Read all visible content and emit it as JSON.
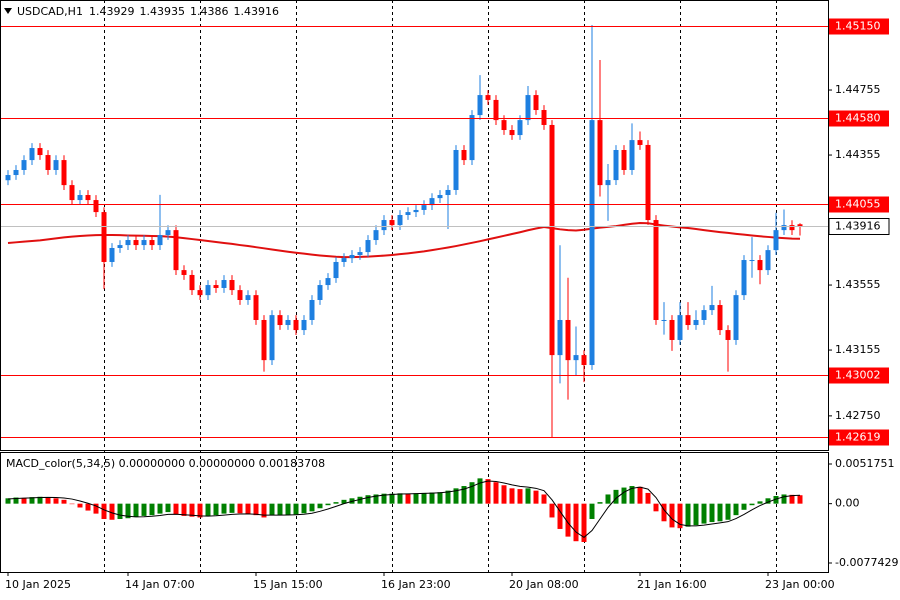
{
  "chart_data": [
    {
      "type": "candlestick",
      "title": "USDCAD,H1",
      "categories": [
        "10 Jan 2025",
        null,
        null,
        null,
        null,
        null,
        null,
        null,
        null,
        null,
        null,
        null,
        null,
        null,
        null,
        "14 Jan 07:00",
        null,
        null,
        null,
        null,
        null,
        null,
        null,
        null,
        null,
        null,
        null,
        null,
        null,
        null,
        null,
        "15 Jan 15:00",
        null,
        null,
        null,
        null,
        null,
        null,
        null,
        null,
        null,
        null,
        null,
        null,
        null,
        null,
        null,
        "16 Jan 23:00",
        null,
        null,
        null,
        null,
        null,
        null,
        null,
        null,
        null,
        null,
        null,
        null,
        null,
        null,
        null,
        "20 Jan 08:00",
        null,
        null,
        null,
        null,
        null,
        null,
        null,
        null,
        null,
        null,
        null,
        null,
        null,
        null,
        null,
        "21 Jan 16:00",
        null,
        null,
        null,
        null,
        null,
        null,
        null,
        null,
        null,
        null,
        null,
        null,
        null,
        null,
        null,
        "23 Jan 00:00",
        null,
        null,
        null,
        null
      ],
      "open": [
        1.442,
        1.44232,
        1.44263,
        1.44324,
        1.44398,
        1.44355,
        1.44263,
        1.44324,
        1.4417,
        1.44078,
        1.44109,
        1.44078,
        1.44004,
        1.43697,
        1.43783,
        1.43801,
        1.43832,
        1.43801,
        1.43832,
        1.43801,
        1.43863,
        1.43893,
        1.43647,
        1.43617,
        1.43524,
        1.43493,
        1.43555,
        1.43537,
        1.43586,
        1.43524,
        1.43463,
        1.43493,
        1.4334,
        1.43093,
        1.4337,
        1.43309,
        1.4334,
        1.43278,
        1.4334,
        1.43463,
        1.43555,
        1.43598,
        1.43697,
        1.43721,
        1.4374,
        1.43758,
        1.43832,
        1.43893,
        1.43955,
        1.43924,
        1.43986,
        1.44004,
        1.44017,
        1.44047,
        1.4409,
        1.44109,
        1.4414,
        1.44386,
        1.44324,
        1.44601,
        1.44724,
        1.44694,
        1.4457,
        1.44509,
        1.44478,
        1.4457,
        1.44724,
        1.44632,
        1.4454,
        1.43124,
        1.4334,
        1.43093,
        1.43124,
        1.43063,
        1.4457,
        1.4417,
        1.44201,
        1.44386,
        1.44263,
        1.44447,
        1.44417,
        1.43955,
        1.4334,
        1.4334,
        1.43217,
        1.4337,
        1.43309,
        1.4334,
        1.43401,
        1.43432,
        1.43278,
        1.43217,
        1.43493,
        1.43709,
        1.43709,
        1.43647,
        1.4377,
        1.43893,
        1.43924,
        1.43929
      ],
      "high": [
        1.44262,
        1.44293,
        1.44354,
        1.44428,
        1.44428,
        1.44385,
        1.44354,
        1.44354,
        1.442,
        1.44139,
        1.44139,
        1.44108,
        1.44034,
        1.43813,
        1.43831,
        1.43862,
        1.43862,
        1.43862,
        1.43862,
        1.4411,
        1.43923,
        1.43923,
        1.43677,
        1.43647,
        1.43554,
        1.43585,
        1.43585,
        1.43616,
        1.43616,
        1.43554,
        1.43523,
        1.43523,
        1.4337,
        1.434,
        1.434,
        1.4337,
        1.4337,
        1.4337,
        1.43493,
        1.43585,
        1.43628,
        1.43727,
        1.43751,
        1.4377,
        1.43788,
        1.43862,
        1.43923,
        1.43985,
        1.43985,
        1.44016,
        1.44034,
        1.44047,
        1.44077,
        1.4412,
        1.44139,
        1.4417,
        1.44416,
        1.44416,
        1.44631,
        1.44847,
        1.44754,
        1.44724,
        1.446,
        1.44539,
        1.446,
        1.4478,
        1.44754,
        1.44662,
        1.4457,
        1.438,
        1.436,
        1.433,
        1.43154,
        1.45155,
        1.4494,
        1.443,
        1.44416,
        1.44416,
        1.4455,
        1.445,
        1.44447,
        1.43985,
        1.4345,
        1.4337,
        1.4345,
        1.4345,
        1.434,
        1.43431,
        1.4355,
        1.43462,
        1.43308,
        1.43523,
        1.43739,
        1.4385,
        1.43739,
        1.438,
        1.44,
        1.4402,
        1.43954,
        1.43935
      ],
      "low": [
        1.4417,
        1.44202,
        1.44233,
        1.44294,
        1.44325,
        1.44233,
        1.44233,
        1.4414,
        1.44048,
        1.44048,
        1.44048,
        1.43974,
        1.4353,
        1.43667,
        1.43753,
        1.43771,
        1.43771,
        1.43771,
        1.43771,
        1.43771,
        1.43833,
        1.43617,
        1.43587,
        1.43494,
        1.43463,
        1.43463,
        1.43507,
        1.43507,
        1.43494,
        1.43433,
        1.43433,
        1.4331,
        1.43022,
        1.43063,
        1.43279,
        1.43279,
        1.43248,
        1.43248,
        1.4331,
        1.43433,
        1.43525,
        1.43568,
        1.43667,
        1.43691,
        1.4371,
        1.43728,
        1.43802,
        1.43863,
        1.43894,
        1.43894,
        1.43956,
        1.43974,
        1.43987,
        1.44017,
        1.4406,
        1.439,
        1.4411,
        1.44294,
        1.44294,
        1.44571,
        1.44664,
        1.4454,
        1.44479,
        1.44448,
        1.44448,
        1.4454,
        1.44602,
        1.4451,
        1.4262,
        1.4295,
        1.4285,
        1.43,
        1.42958,
        1.43033,
        1.441,
        1.4395,
        1.44171,
        1.44233,
        1.44233,
        1.44387,
        1.43925,
        1.4331,
        1.4325,
        1.4315,
        1.43187,
        1.43279,
        1.43279,
        1.4331,
        1.43371,
        1.43248,
        1.43022,
        1.43187,
        1.43463,
        1.436,
        1.4356,
        1.43617,
        1.4374,
        1.43863,
        1.43863,
        1.4386
      ],
      "close": [
        1.44232,
        1.44263,
        1.44324,
        1.44398,
        1.44355,
        1.44263,
        1.44324,
        1.4417,
        1.44078,
        1.44109,
        1.44078,
        1.44004,
        1.43697,
        1.43783,
        1.43801,
        1.43832,
        1.43801,
        1.43832,
        1.43801,
        1.43863,
        1.43893,
        1.43647,
        1.43617,
        1.43524,
        1.43493,
        1.43555,
        1.43537,
        1.43586,
        1.43524,
        1.43463,
        1.43493,
        1.4334,
        1.43093,
        1.4337,
        1.43309,
        1.4334,
        1.43278,
        1.4334,
        1.43463,
        1.43555,
        1.43598,
        1.43697,
        1.43721,
        1.4374,
        1.43758,
        1.43832,
        1.43893,
        1.43955,
        1.43924,
        1.43986,
        1.44004,
        1.44017,
        1.44047,
        1.4409,
        1.44109,
        1.4414,
        1.44386,
        1.44324,
        1.44601,
        1.44724,
        1.44694,
        1.4457,
        1.44509,
        1.44478,
        1.4457,
        1.44724,
        1.44632,
        1.4454,
        1.43124,
        1.4334,
        1.43093,
        1.43124,
        1.43063,
        1.4457,
        1.4417,
        1.44201,
        1.44386,
        1.44263,
        1.44447,
        1.44417,
        1.43955,
        1.4334,
        1.4334,
        1.43217,
        1.4337,
        1.43309,
        1.4334,
        1.43401,
        1.43432,
        1.43278,
        1.43217,
        1.43493,
        1.43709,
        1.43709,
        1.43647,
        1.4377,
        1.43893,
        1.43924,
        1.43893,
        1.43916
      ],
      "up_color": "#1e7fe0",
      "down_color": "#ff0000",
      "ma": {
        "color": "#e01010",
        "values": [
          1.43814,
          1.43818,
          1.43822,
          1.43826,
          1.4383,
          1.43836,
          1.43842,
          1.43848,
          1.43853,
          1.43857,
          1.4386,
          1.43862,
          1.43863,
          1.43863,
          1.43862,
          1.4386,
          1.43859,
          1.43858,
          1.43857,
          1.43856,
          1.43853,
          1.43849,
          1.43844,
          1.43838,
          1.43832,
          1.43826,
          1.4382,
          1.43814,
          1.43808,
          1.43801,
          1.43795,
          1.43788,
          1.43781,
          1.43774,
          1.43767,
          1.4376,
          1.43754,
          1.43748,
          1.43742,
          1.43737,
          1.43733,
          1.43729,
          1.43727,
          1.43727,
          1.43728,
          1.4373,
          1.43733,
          1.43736,
          1.4374,
          1.43745,
          1.4375,
          1.43756,
          1.43762,
          1.4377,
          1.43778,
          1.43786,
          1.43795,
          1.43805,
          1.43815,
          1.43825,
          1.43836,
          1.43847,
          1.43858,
          1.43869,
          1.4388,
          1.43892,
          1.43903,
          1.43912,
          1.43905,
          1.43898,
          1.43893,
          1.43891,
          1.43895,
          1.43902,
          1.43908,
          1.43913,
          1.43918,
          1.43925,
          1.43932,
          1.43937,
          1.43935,
          1.43928,
          1.43921,
          1.43915,
          1.4391,
          1.43906,
          1.439,
          1.43893,
          1.43887,
          1.43881,
          1.43876,
          1.4387,
          1.43865,
          1.4386,
          1.43855,
          1.43851,
          1.43847,
          1.43844,
          1.43841,
          1.4384
        ]
      },
      "levels": [
        {
          "value": 1.4515,
          "label": "1.45150"
        },
        {
          "value": 1.4458,
          "label": "1.44580"
        },
        1.44055,
        1.43002,
        1.42619
      ],
      "level_color": "#ff0000",
      "ylim": [
        1.4254,
        1.45309
      ],
      "yticks": [
        1.44755,
        1.44355,
        1.43555,
        1.43155,
        {
          "value": 1.4275,
          "label": "1.42750"
        }
      ]
    },
    {
      "type": "bar",
      "title": "MACD_color(5,34,5) 0.00000000 0.00000000 0.00183708",
      "series": [
        {
          "type": "bar",
          "up_color": "#008000",
          "down_color": "#ff0000",
          "values": [
            0.0007,
            0.0008,
            0.00075,
            0.00085,
            0.0009,
            0.0008,
            0.0007,
            0.0005,
            0.0,
            -0.0005,
            -0.0009,
            -0.0013,
            -0.002,
            -0.0021,
            -0.002,
            -0.0019,
            -0.00175,
            -0.0016,
            -0.0015,
            -0.0013,
            -0.0011,
            -0.0014,
            -0.0016,
            -0.0017,
            -0.0018,
            -0.00165,
            -0.0015,
            -0.0013,
            -0.0012,
            -0.00125,
            -0.0013,
            -0.0015,
            -0.0018,
            -0.0015,
            -0.0015,
            -0.00145,
            -0.0014,
            -0.00125,
            -0.001,
            -0.0006,
            -0.0002,
            0.0002,
            0.0005,
            0.0007,
            0.0009,
            0.0011,
            0.0012,
            0.0013,
            0.0013,
            0.00135,
            0.0013,
            0.00135,
            0.0014,
            0.00145,
            0.0015,
            0.0017,
            0.002,
            0.0023,
            0.0028,
            0.0033,
            0.0032,
            0.0028,
            0.0024,
            0.002,
            0.0019,
            0.002,
            0.0017,
            0.0012,
            -0.0018,
            -0.0033,
            -0.0043,
            -0.0049,
            -0.005,
            -0.002,
            0.0002,
            0.0012,
            0.0018,
            0.0021,
            0.0023,
            0.0022,
            0.0014,
            -0.001,
            -0.0023,
            -0.0031,
            -0.0032,
            -0.003,
            -0.0028,
            -0.0026,
            -0.0024,
            -0.0023,
            -0.0021,
            -0.0015,
            -0.0008,
            -0.0002,
            0.0003,
            0.0007,
            0.001,
            0.0012,
            0.00115,
            0.0011
          ]
        },
        {
          "type": "line",
          "color": "#000000",
          "values": [
            0.0006,
            0.00068,
            0.00072,
            0.00076,
            0.0008,
            0.00082,
            0.0008,
            0.00074,
            0.0006,
            0.00035,
            5e-05,
            -0.0003,
            -0.0008,
            -0.0012,
            -0.0015,
            -0.00165,
            -0.00172,
            -0.0017,
            -0.00165,
            -0.00155,
            -0.0014,
            -0.00138,
            -0.00145,
            -0.00152,
            -0.0016,
            -0.00162,
            -0.00158,
            -0.0015,
            -0.0014,
            -0.00135,
            -0.00133,
            -0.00138,
            -0.0015,
            -0.0015,
            -0.0015,
            -0.00148,
            -0.00145,
            -0.00138,
            -0.00125,
            -0.001,
            -0.0007,
            -0.00035,
            0.0,
            0.0003,
            0.00055,
            0.0008,
            0.00098,
            0.00112,
            0.0012,
            0.00126,
            0.00128,
            0.00131,
            0.00134,
            0.00138,
            0.00143,
            0.00152,
            0.00168,
            0.0019,
            0.00225,
            0.0027,
            0.00295,
            0.0029,
            0.0027,
            0.00245,
            0.00225,
            0.00215,
            0.002,
            0.0017,
            0.0005,
            -0.001,
            -0.0025,
            -0.0037,
            -0.0044,
            -0.0035,
            -0.002,
            -0.0005,
            0.0007,
            0.0015,
            0.002,
            0.00215,
            0.0019,
            0.0008,
            -0.0008,
            -0.002,
            -0.0027,
            -0.0029,
            -0.0029,
            -0.0028,
            -0.00265,
            -0.0025,
            -0.00235,
            -0.00195,
            -0.0014,
            -0.0008,
            -0.00025,
            0.0002,
            0.0006,
            0.0009,
            0.00105,
            0.0011
          ]
        }
      ],
      "ylim": [
        -0.0089174,
        0.0067411
      ],
      "yticks": [
        0.0051751,
        {
          "value": 0,
          "label": "0.00"
        },
        -0.0077429
      ]
    }
  ]
}
